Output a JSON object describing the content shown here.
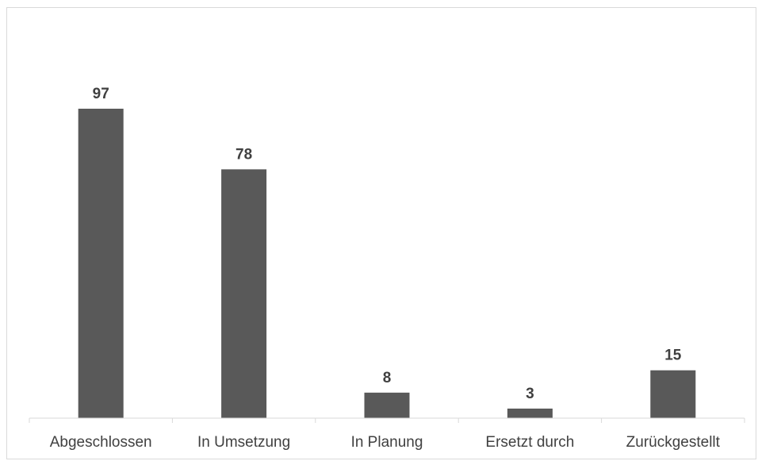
{
  "chart_data": {
    "type": "bar",
    "categories": [
      "Abgeschlossen",
      "In Umsetzung",
      "In Planung",
      "Ersetzt durch",
      "Zurückgestellt"
    ],
    "series": [
      {
        "values": [
          97,
          78,
          8,
          3,
          15
        ]
      }
    ],
    "title": "",
    "xlabel": "",
    "ylabel": "",
    "ylim": [
      0,
      110
    ],
    "data_labels": [
      "97",
      "78",
      "8",
      "3",
      "15"
    ],
    "bar_color": "#595959",
    "axis_color": "#d9d9d9",
    "grid": false,
    "legend": "none"
  }
}
